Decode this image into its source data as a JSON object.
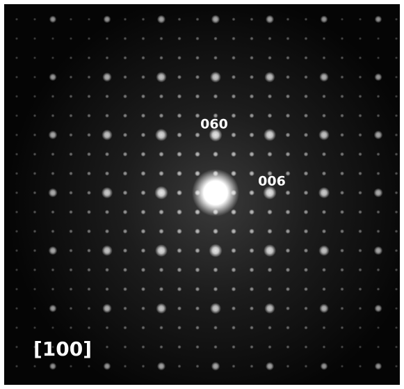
{
  "labels": {
    "spot_a": "060",
    "spot_b": "006",
    "zone_axis": "[100]"
  }
}
